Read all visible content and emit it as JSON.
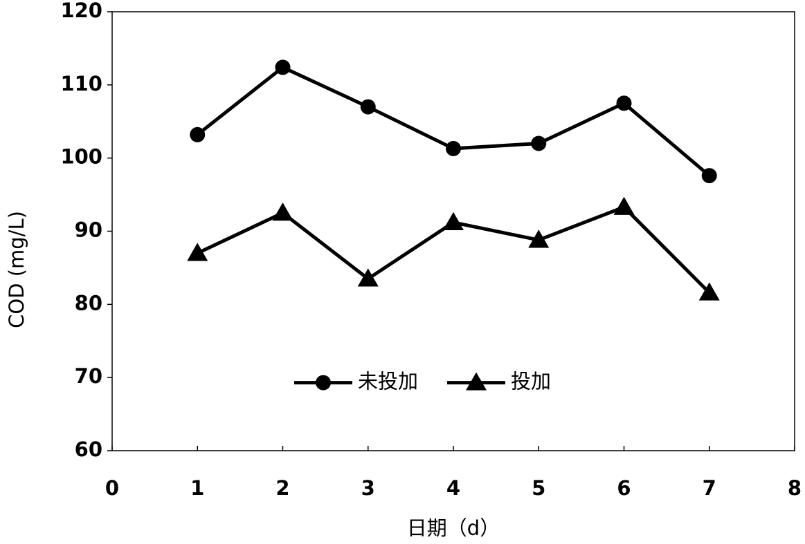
{
  "chart_data": {
    "type": "line",
    "x_label": "日期（d）",
    "y_label": "COD (mg/L)",
    "x": [
      1,
      2,
      3,
      4,
      5,
      6,
      7
    ],
    "series": [
      {
        "name": "未投加",
        "color": "#000000",
        "marker": "circle",
        "values": [
          103.2,
          112.4,
          107.0,
          101.3,
          102.0,
          107.5,
          97.6
        ]
      },
      {
        "name": "投加",
        "color": "#000000",
        "marker": "triangle",
        "values": [
          87.0,
          92.5,
          83.5,
          91.2,
          88.8,
          93.3,
          81.6
        ]
      }
    ],
    "xlim": [
      0,
      8
    ],
    "xticks": [
      0,
      1,
      2,
      3,
      4,
      5,
      6,
      7,
      8
    ],
    "ylim": [
      60,
      120
    ],
    "yticks": [
      60,
      70,
      80,
      90,
      100,
      110,
      120
    ],
    "grid": false,
    "legend": "lower center"
  }
}
